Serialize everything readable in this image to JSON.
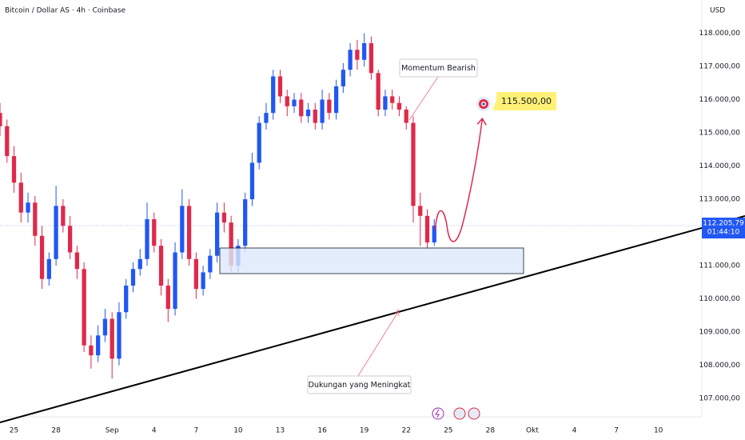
{
  "chart_data": {
    "type": "candlestick",
    "title": "Bitcoin / Dollar AS · 4h · Coinbase",
    "currency": "USD",
    "up_color": "#2157f3",
    "down_color": "#e0294a",
    "grid": false,
    "x": [
      -1,
      -0.5,
      0,
      0.5,
      1,
      1.5,
      2,
      2.5,
      3,
      3.5,
      4,
      4.5,
      5,
      5.5,
      6,
      6.5,
      7,
      7.5,
      8,
      8.5,
      9,
      9.5,
      10,
      10.5,
      11,
      11.5,
      12,
      12.5,
      13,
      13.5,
      14,
      14.5,
      15,
      15.5,
      16,
      16.5,
      17,
      17.5,
      18,
      18.5,
      19,
      19.5,
      20,
      20.5,
      21,
      21.5,
      22,
      22.5,
      23,
      23.5,
      24,
      24.5,
      25,
      25.5,
      26,
      26.5,
      27,
      27.5,
      28,
      28.5,
      29,
      29.5,
      30
    ],
    "open": [
      115600,
      115200,
      114300,
      113500,
      112600,
      112900,
      111900,
      110600,
      111200,
      112800,
      112200,
      111400,
      110900,
      108600,
      108300,
      108900,
      109400,
      108200,
      109600,
      110400,
      110900,
      111200,
      112400,
      111600,
      110400,
      109700,
      111400,
      112800,
      111200,
      110300,
      110800,
      111300,
      112600,
      112300,
      111000,
      111600,
      113000,
      114100,
      115300,
      115600,
      116700,
      116100,
      115800,
      116000,
      115500,
      115700,
      115300,
      116000,
      115600,
      116400,
      116900,
      117500,
      117200,
      117700,
      116800,
      115700,
      116100,
      115900,
      115700,
      115300,
      112800,
      112500,
      111700
    ],
    "high": [
      115900,
      115400,
      114600,
      113800,
      113200,
      113100,
      112200,
      111400,
      113400,
      113000,
      112500,
      111600,
      111100,
      108900,
      109200,
      109700,
      109600,
      109900,
      110600,
      111100,
      111500,
      112900,
      112600,
      111800,
      110600,
      111700,
      113300,
      113000,
      111400,
      111000,
      111500,
      112900,
      112900,
      112500,
      111800,
      113200,
      114400,
      115500,
      115900,
      116900,
      116900,
      116300,
      116200,
      116200,
      115900,
      115900,
      116300,
      116200,
      116600,
      117100,
      117700,
      117800,
      118000,
      117900,
      116900,
      116300,
      116300,
      116100,
      115800,
      115500,
      113200,
      112700,
      112400
    ],
    "low": [
      114900,
      114100,
      113200,
      112300,
      112300,
      111600,
      110300,
      110400,
      111000,
      112000,
      111200,
      110600,
      108400,
      107900,
      108100,
      108700,
      107600,
      108000,
      109400,
      110200,
      110700,
      111000,
      111400,
      110100,
      109300,
      109500,
      111200,
      111000,
      110000,
      110100,
      110600,
      111100,
      112000,
      110800,
      110800,
      111400,
      112800,
      113900,
      115100,
      115400,
      115900,
      115500,
      115600,
      115300,
      115300,
      115100,
      115100,
      115400,
      115400,
      116200,
      116700,
      116900,
      117000,
      116600,
      115500,
      115500,
      115700,
      115500,
      115100,
      112300,
      111600,
      111500,
      111600
    ],
    "close": [
      115200,
      114300,
      113500,
      112600,
      112900,
      111900,
      110600,
      111200,
      112800,
      112200,
      111400,
      110900,
      108600,
      108300,
      108900,
      109400,
      108200,
      109600,
      110400,
      110900,
      111200,
      112400,
      111600,
      110400,
      109700,
      111400,
      112800,
      111200,
      110300,
      110800,
      111300,
      112600,
      112300,
      111000,
      111600,
      113000,
      114100,
      115300,
      115600,
      116700,
      116100,
      115800,
      116000,
      115500,
      115700,
      115300,
      116000,
      115600,
      116400,
      116900,
      117500,
      117200,
      117700,
      116800,
      115700,
      116100,
      115900,
      115700,
      115300,
      112800,
      112500,
      111700,
      112205.79
    ],
    "last_price": {
      "value": 112205.79,
      "label": "112.205,79"
    },
    "countdown": "01:44:10",
    "xlim": [
      -1,
      49.1
    ],
    "ylim": [
      106450,
      119000
    ],
    "xticks": [
      {
        "value": 0,
        "label": "25"
      },
      {
        "value": 3,
        "label": "28"
      },
      {
        "value": 7,
        "label": "Sep"
      },
      {
        "value": 10,
        "label": "4"
      },
      {
        "value": 13,
        "label": "7"
      },
      {
        "value": 16,
        "label": "10"
      },
      {
        "value": 19,
        "label": "13"
      },
      {
        "value": 22,
        "label": "16"
      },
      {
        "value": 25,
        "label": "19"
      },
      {
        "value": 28,
        "label": "22"
      },
      {
        "value": 31,
        "label": "25"
      },
      {
        "value": 34,
        "label": "28"
      },
      {
        "value": 37,
        "label": "Okt"
      },
      {
        "value": 40,
        "label": "4"
      },
      {
        "value": 43,
        "label": "7"
      },
      {
        "value": 46,
        "label": "10"
      }
    ],
    "yticks": [
      {
        "value": 107000,
        "label": "107.000,00"
      },
      {
        "value": 108000,
        "label": "108.000,00"
      },
      {
        "value": 109000,
        "label": "109.000,00"
      },
      {
        "value": 110000,
        "label": "110.000,00"
      },
      {
        "value": 111000,
        "label": "111.000,00"
      },
      {
        "value": 113000,
        "label": "113.000,00"
      },
      {
        "value": 114000,
        "label": "114.000,00"
      },
      {
        "value": 115000,
        "label": "115.000,00"
      },
      {
        "value": 116000,
        "label": "116.000,00"
      },
      {
        "value": 117000,
        "label": "117.000,00"
      },
      {
        "value": 118000,
        "label": "118.000,00"
      }
    ],
    "target": {
      "value": 115500,
      "label": "115.500,00"
    },
    "annotations": [
      "Momentum Bearish",
      "Dukungan yang Meningkat"
    ]
  }
}
